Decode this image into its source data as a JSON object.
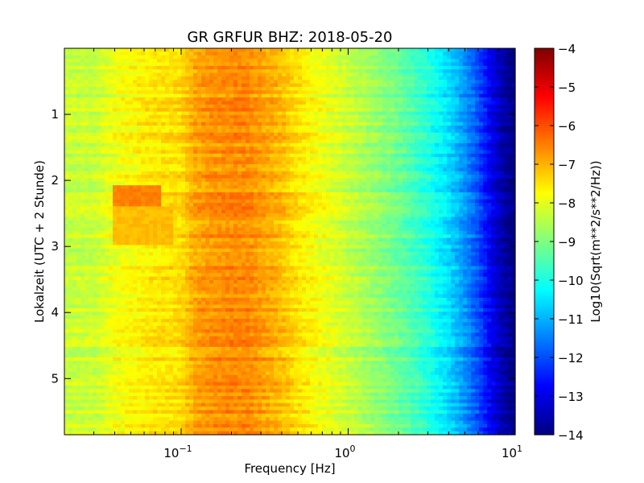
{
  "chart_data": {
    "type": "heatmap",
    "title": "GR GRFUR BHZ: 2018-05-20",
    "xlabel": "Frequency [Hz]",
    "ylabel": "Lokalzeit (UTC + 2 Stunde)",
    "xscale": "log",
    "xlim": [
      0.02,
      10
    ],
    "ylim": [
      5.85,
      0.0
    ],
    "x_ticks": [
      {
        "value": 0.1,
        "base": "10",
        "exp": "−1"
      },
      {
        "value": 1,
        "base": "10",
        "exp": "0"
      },
      {
        "value": 10,
        "base": "10",
        "exp": "1"
      }
    ],
    "y_ticks": [
      1,
      2,
      3,
      4,
      5
    ],
    "colormap": "jet",
    "colorbar": {
      "label": "Log10(Sqrt(m**2/s**2/Hz))",
      "min": -14,
      "max": -4,
      "ticks": [
        -4,
        -5,
        -6,
        -7,
        -8,
        -9,
        -10,
        -11,
        -12,
        -13,
        -14
      ]
    },
    "spectrum_profile": {
      "frequency_hz": [
        0.02,
        0.03,
        0.04,
        0.06,
        0.08,
        0.1,
        0.12,
        0.15,
        0.2,
        0.25,
        0.3,
        0.4,
        0.5,
        0.7,
        1.0,
        1.5,
        2.0,
        3.0,
        4.0,
        5.0,
        6.0,
        7.0,
        8.0,
        9.0,
        10.0
      ],
      "log10_amplitude": [
        -8.3,
        -8.3,
        -7.9,
        -7.6,
        -7.5,
        -7.4,
        -6.9,
        -6.7,
        -6.6,
        -6.6,
        -6.8,
        -7.1,
        -7.5,
        -7.9,
        -8.3,
        -8.8,
        -9.2,
        -9.9,
        -10.6,
        -11.3,
        -12.0,
        -12.8,
        -13.4,
        -13.8,
        -14.0
      ]
    },
    "events": [
      {
        "time_start": 2.1,
        "time_end": 2.4,
        "frequency_start": 0.04,
        "frequency_end": 0.075,
        "log10_amplitude": -6.5
      },
      {
        "time_start": 2.4,
        "time_end": 3.0,
        "frequency_start": 0.04,
        "frequency_end": 0.09,
        "log10_amplitude": -7.1
      }
    ]
  }
}
